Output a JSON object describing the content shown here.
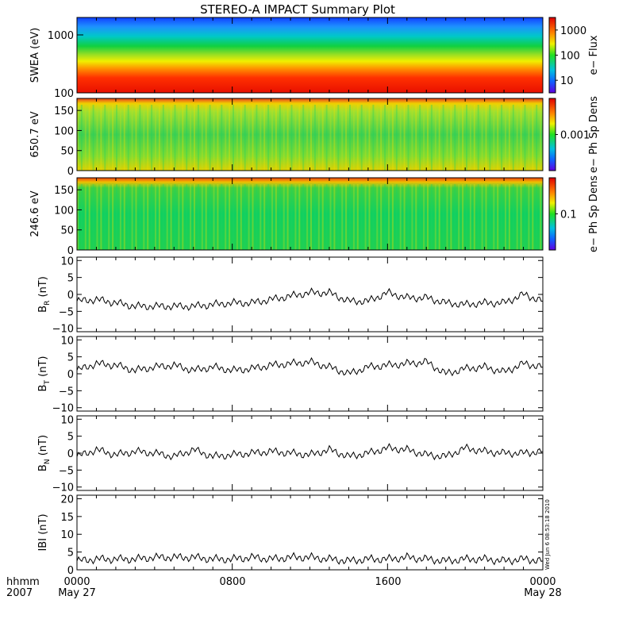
{
  "title": "STEREO-A IMPACT Summary Plot",
  "time_axis": {
    "ticks": [
      {
        "line1": "0000",
        "line2": "May 27"
      },
      {
        "line1": "0800",
        "line2": ""
      },
      {
        "line1": "1600",
        "line2": ""
      },
      {
        "line1": "0000",
        "line2": "May 28"
      }
    ],
    "format_label_1": "hhmm",
    "format_label_2": "2007"
  },
  "timestamp": "Wed Jun  6 08:53:18 2010",
  "chart_data": [
    {
      "type": "heatmap",
      "ylabel": "SWEA (eV)",
      "yscale": "log",
      "ylim": [
        100,
        2000
      ],
      "yticks": [
        "1000",
        "100"
      ],
      "colorbar": {
        "label": "e− Flux",
        "scale": "log",
        "ticks": [
          "1000",
          "100",
          "10"
        ]
      }
    },
    {
      "type": "heatmap",
      "ylabel": "650.7 eV",
      "ylim": [
        0,
        180
      ],
      "yticks": [
        "150",
        "100",
        "50",
        "0"
      ],
      "colorbar": {
        "label": "e− Ph Sp Dens",
        "scale": "log",
        "ticks": [
          "0.001"
        ]
      }
    },
    {
      "type": "heatmap",
      "ylabel": "246.6 eV",
      "ylim": [
        0,
        180
      ],
      "yticks": [
        "150",
        "100",
        "50",
        "0"
      ],
      "colorbar": {
        "label": "e− Ph Sp Dens",
        "scale": "log",
        "ticks": [
          "0.1"
        ]
      }
    },
    {
      "type": "line",
      "ylabel": "B_R (nT)",
      "ylabel_main": "B",
      "ylabel_sub": "R",
      "ylabel_unit": " (nT)",
      "ylim": [
        -11,
        11
      ],
      "yticks": [
        "10",
        "5",
        "0",
        "−5",
        "−10"
      ],
      "x": [
        0,
        1,
        2,
        3,
        4,
        5,
        6,
        7,
        8,
        9,
        10,
        11,
        12,
        13,
        14,
        15,
        16,
        17,
        18,
        19,
        20,
        21,
        22,
        23,
        24
      ],
      "y": [
        -2.0,
        -1.5,
        -2.5,
        -3.5,
        -3.5,
        -3.5,
        -3.5,
        -3.0,
        -2.5,
        -2.5,
        -1.5,
        -0.5,
        0.5,
        0.5,
        -2.0,
        -2.0,
        0.5,
        -1.0,
        -1.0,
        -2.5,
        -3.0,
        -2.5,
        -2.5,
        0.0,
        -2.0
      ]
    },
    {
      "type": "line",
      "ylabel": "B_T (nT)",
      "ylabel_main": "B",
      "ylabel_sub": "T",
      "ylabel_unit": " (nT)",
      "ylim": [
        -11,
        11
      ],
      "yticks": [
        "10",
        "5",
        "0",
        "−5",
        "−10"
      ],
      "x": [
        0,
        1,
        2,
        3,
        4,
        5,
        6,
        7,
        8,
        9,
        10,
        11,
        12,
        13,
        14,
        15,
        16,
        17,
        18,
        19,
        20,
        21,
        22,
        23,
        24
      ],
      "y": [
        1.0,
        3.0,
        2.5,
        1.0,
        2.0,
        2.5,
        1.0,
        2.0,
        1.0,
        1.5,
        2.5,
        3.0,
        3.5,
        2.0,
        0.0,
        2.0,
        2.5,
        3.0,
        3.5,
        0.0,
        1.5,
        2.0,
        0.5,
        3.0,
        2.0
      ]
    },
    {
      "type": "line",
      "ylabel": "B_N (nT)",
      "ylabel_main": "B",
      "ylabel_sub": "N",
      "ylabel_unit": " (nT)",
      "ylim": [
        -11,
        11
      ],
      "yticks": [
        "10",
        "5",
        "0",
        "−5",
        "−10"
      ],
      "x": [
        0,
        1,
        2,
        3,
        4,
        5,
        6,
        7,
        8,
        9,
        10,
        11,
        12,
        13,
        14,
        15,
        16,
        17,
        18,
        19,
        20,
        21,
        22,
        23,
        24
      ],
      "y": [
        -1.0,
        1.0,
        -0.5,
        0.5,
        0.0,
        -1.0,
        1.0,
        -1.0,
        -0.5,
        0.0,
        0.5,
        0.0,
        -0.5,
        1.0,
        -1.0,
        0.0,
        1.5,
        1.0,
        -0.5,
        -1.0,
        1.5,
        0.5,
        0.0,
        0.0,
        0.5
      ]
    },
    {
      "type": "line",
      "ylabel": "|B| (nT)",
      "ylabel_main": "IBI",
      "ylabel_sub": "",
      "ylabel_unit": " (nT)",
      "ylim": [
        0,
        21
      ],
      "yticks": [
        "20",
        "15",
        "10",
        "5",
        "0"
      ],
      "x": [
        0,
        1,
        2,
        3,
        4,
        5,
        6,
        7,
        8,
        9,
        10,
        11,
        12,
        13,
        14,
        15,
        16,
        17,
        18,
        19,
        20,
        21,
        22,
        23,
        24
      ],
      "y": [
        2.5,
        3.0,
        3.0,
        3.0,
        3.5,
        3.5,
        3.5,
        3.0,
        3.0,
        3.5,
        3.0,
        3.5,
        3.5,
        3.0,
        2.5,
        3.0,
        3.0,
        3.5,
        3.0,
        2.5,
        3.0,
        3.0,
        2.5,
        3.0,
        2.5
      ]
    }
  ]
}
